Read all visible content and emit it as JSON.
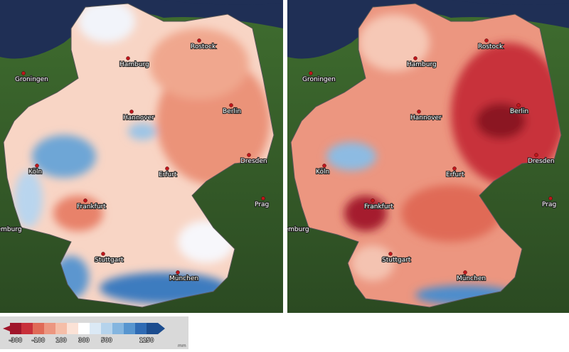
{
  "maps": [
    {
      "cities": [
        "Rostock",
        "Hamburg",
        "Groningen",
        "Hannover",
        "Berlin",
        "Dresden",
        "Köln",
        "Erfurt",
        "Frankfurt",
        "Prag",
        "Luxemburg",
        "Stuttgart",
        "München"
      ]
    }
  ],
  "legend": {
    "ticks": [
      "-300",
      "-100",
      "100",
      "300",
      "500",
      "1250"
    ],
    "unit": "mm"
  }
}
